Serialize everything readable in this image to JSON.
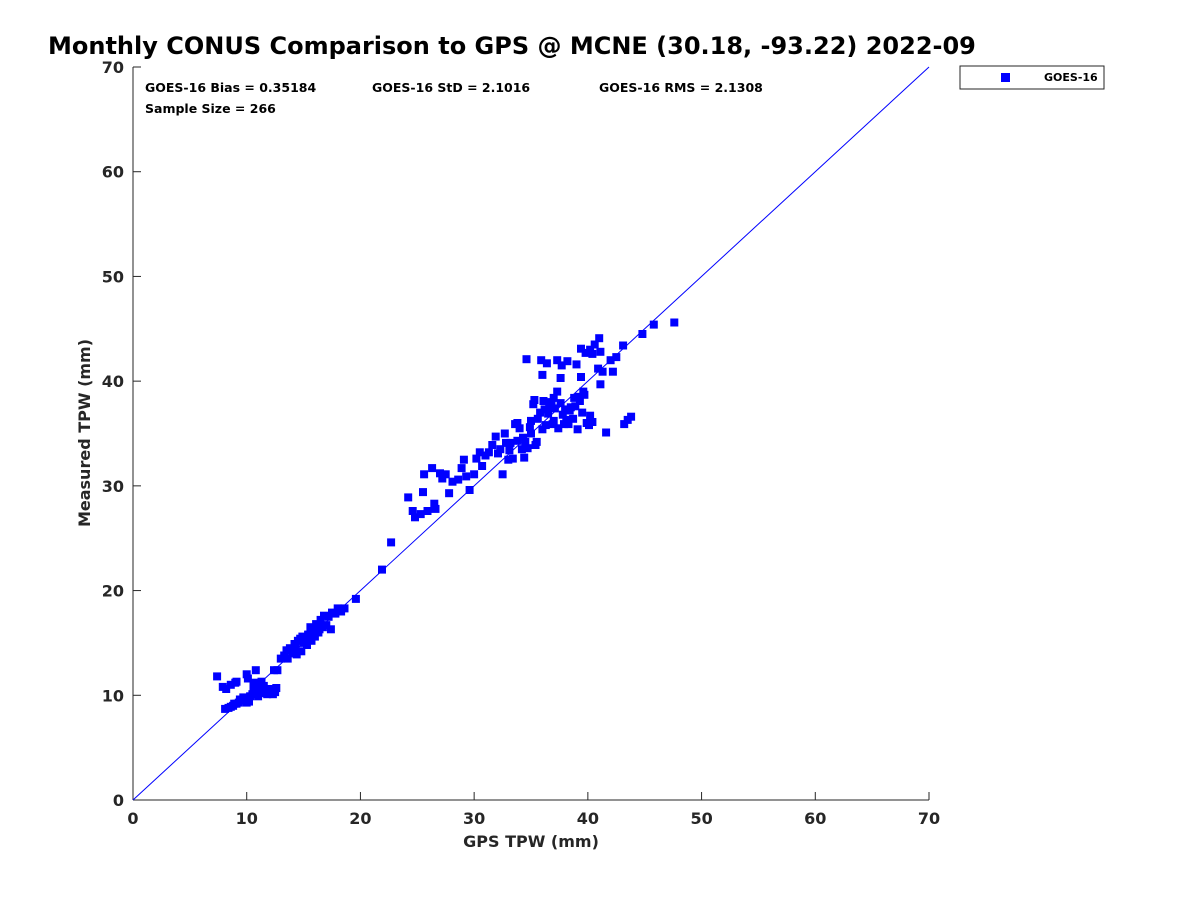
{
  "chart_data": {
    "type": "scatter",
    "title": "Monthly CONUS Comparison to GPS @ MCNE (30.18, -93.22) 2022-09",
    "xlabel": "GPS TPW (mm)",
    "ylabel": "Measured TPW (mm)",
    "xlim": [
      0,
      70
    ],
    "ylim": [
      0,
      70
    ],
    "xticks": [
      "0",
      "10",
      "20",
      "30",
      "40",
      "50",
      "60",
      "70"
    ],
    "yticks": [
      "0",
      "10",
      "20",
      "30",
      "40",
      "50",
      "60",
      "70"
    ],
    "grid": false,
    "legend_position": "outside-top-right",
    "reference_line": [
      [
        0,
        0
      ],
      [
        70,
        70
      ]
    ],
    "stats": {
      "bias": "GOES-16 Bias = 0.35184",
      "std": "GOES-16 StD = 2.1016",
      "rms": "GOES-16 RMS = 2.1308",
      "sample_size": "Sample Size = 266"
    },
    "series": [
      {
        "name": "GOES-16",
        "color": "#0000ff",
        "marker": "square",
        "points": [
          [
            7.4,
            11.8
          ],
          [
            7.9,
            10.8
          ],
          [
            8.2,
            10.6
          ],
          [
            8.6,
            11.0
          ],
          [
            9.0,
            11.2
          ],
          [
            9.1,
            11.3
          ],
          [
            10.0,
            12.0
          ],
          [
            10.1,
            11.6
          ],
          [
            10.6,
            11.2
          ],
          [
            10.8,
            12.4
          ],
          [
            11.0,
            10.8
          ],
          [
            11.3,
            11.3
          ],
          [
            11.5,
            10.9
          ],
          [
            11.7,
            10.4
          ],
          [
            12.2,
            10.6
          ],
          [
            12.5,
            10.3
          ],
          [
            12.6,
            10.7
          ],
          [
            8.1,
            8.7
          ],
          [
            8.4,
            8.8
          ],
          [
            8.6,
            8.9
          ],
          [
            8.8,
            9.0
          ],
          [
            8.9,
            9.2
          ],
          [
            9.1,
            9.2
          ],
          [
            9.3,
            9.3
          ],
          [
            9.4,
            9.6
          ],
          [
            9.6,
            9.5
          ],
          [
            9.7,
            9.8
          ],
          [
            9.9,
            9.7
          ],
          [
            10.0,
            9.3
          ],
          [
            10.2,
            9.4
          ],
          [
            10.3,
            9.9
          ],
          [
            10.5,
            10.1
          ],
          [
            10.6,
            10.5
          ],
          [
            10.8,
            10.3
          ],
          [
            11.0,
            9.9
          ],
          [
            11.2,
            10.4
          ],
          [
            11.4,
            10.2
          ],
          [
            11.6,
            10.6
          ],
          [
            11.8,
            10.1
          ],
          [
            12.0,
            10.4
          ],
          [
            12.3,
            10.1
          ],
          [
            12.5,
            10.6
          ],
          [
            12.4,
            12.4
          ],
          [
            12.7,
            12.4
          ],
          [
            13.0,
            13.5
          ],
          [
            13.3,
            13.8
          ],
          [
            13.5,
            14.3
          ],
          [
            13.6,
            13.5
          ],
          [
            13.8,
            14.5
          ],
          [
            14.0,
            14.0
          ],
          [
            14.2,
            14.9
          ],
          [
            14.3,
            14.6
          ],
          [
            14.5,
            15.2
          ],
          [
            14.4,
            13.9
          ],
          [
            14.7,
            15.4
          ],
          [
            14.8,
            14.2
          ],
          [
            15.0,
            15.0
          ],
          [
            15.1,
            15.5
          ],
          [
            15.3,
            14.8
          ],
          [
            15.4,
            15.8
          ],
          [
            15.6,
            16.5
          ],
          [
            15.7,
            15.2
          ],
          [
            15.9,
            16.2
          ],
          [
            16.0,
            15.6
          ],
          [
            16.1,
            16.8
          ],
          [
            16.3,
            16.0
          ],
          [
            16.5,
            17.2
          ],
          [
            16.7,
            16.5
          ],
          [
            16.8,
            17.6
          ],
          [
            17.0,
            16.7
          ],
          [
            17.2,
            17.5
          ],
          [
            17.4,
            16.3
          ],
          [
            17.5,
            17.9
          ],
          [
            17.8,
            17.8
          ],
          [
            18.0,
            18.3
          ],
          [
            18.3,
            18.0
          ],
          [
            18.6,
            18.3
          ],
          [
            19.6,
            19.2
          ],
          [
            15.5,
            15.8
          ],
          [
            14.9,
            15.6
          ],
          [
            16.4,
            16.3
          ],
          [
            21.9,
            22.0
          ],
          [
            22.7,
            24.6
          ],
          [
            24.2,
            28.9
          ],
          [
            24.6,
            27.6
          ],
          [
            24.8,
            27.0
          ],
          [
            25.3,
            27.3
          ],
          [
            25.5,
            29.4
          ],
          [
            25.6,
            31.1
          ],
          [
            25.9,
            27.6
          ],
          [
            26.3,
            31.7
          ],
          [
            26.5,
            28.3
          ],
          [
            26.6,
            27.8
          ],
          [
            27.0,
            31.2
          ],
          [
            27.2,
            30.7
          ],
          [
            27.5,
            31.1
          ],
          [
            27.8,
            29.3
          ],
          [
            28.1,
            30.4
          ],
          [
            28.6,
            30.6
          ],
          [
            28.9,
            31.7
          ],
          [
            29.1,
            32.5
          ],
          [
            29.3,
            30.9
          ],
          [
            29.6,
            29.6
          ],
          [
            30.0,
            31.1
          ],
          [
            30.2,
            32.6
          ],
          [
            30.5,
            33.2
          ],
          [
            30.7,
            31.9
          ],
          [
            31.0,
            32.9
          ],
          [
            31.3,
            33.2
          ],
          [
            31.6,
            33.9
          ],
          [
            31.9,
            34.7
          ],
          [
            32.1,
            33.1
          ],
          [
            32.3,
            33.5
          ],
          [
            32.5,
            31.1
          ],
          [
            32.7,
            35.0
          ],
          [
            33.0,
            32.5
          ],
          [
            33.2,
            34.1
          ],
          [
            33.4,
            32.6
          ],
          [
            33.6,
            35.9
          ],
          [
            33.8,
            34.3
          ],
          [
            34.0,
            35.5
          ],
          [
            34.2,
            33.5
          ],
          [
            34.4,
            32.7
          ],
          [
            34.5,
            34.2
          ],
          [
            34.7,
            33.6
          ],
          [
            35.0,
            35.0
          ],
          [
            35.2,
            37.8
          ],
          [
            35.3,
            38.2
          ],
          [
            35.5,
            34.2
          ],
          [
            35.6,
            36.4
          ],
          [
            35.8,
            37.0
          ],
          [
            36.0,
            35.4
          ],
          [
            36.1,
            38.1
          ],
          [
            36.3,
            35.8
          ],
          [
            36.5,
            36.9
          ],
          [
            36.6,
            37.6
          ],
          [
            36.8,
            38.0
          ],
          [
            37.0,
            36.2
          ],
          [
            37.1,
            37.4
          ],
          [
            37.3,
            39.0
          ],
          [
            37.4,
            35.5
          ],
          [
            37.6,
            37.9
          ],
          [
            37.8,
            36.8
          ],
          [
            38.0,
            37.3
          ],
          [
            38.1,
            36.3
          ],
          [
            38.3,
            35.9
          ],
          [
            38.5,
            37.5
          ],
          [
            38.7,
            36.4
          ],
          [
            38.9,
            37.6
          ],
          [
            39.1,
            35.4
          ],
          [
            39.3,
            38.1
          ],
          [
            39.5,
            37.0
          ],
          [
            39.7,
            38.7
          ],
          [
            39.9,
            36.0
          ],
          [
            40.1,
            35.8
          ],
          [
            40.2,
            36.7
          ],
          [
            34.6,
            42.1
          ],
          [
            35.9,
            42.0
          ],
          [
            36.4,
            41.7
          ],
          [
            37.3,
            42.0
          ],
          [
            37.7,
            41.5
          ],
          [
            38.2,
            41.9
          ],
          [
            39.0,
            41.6
          ],
          [
            39.4,
            43.1
          ],
          [
            39.8,
            42.7
          ],
          [
            40.2,
            43.0
          ],
          [
            40.6,
            43.5
          ],
          [
            41.0,
            44.1
          ],
          [
            40.9,
            41.2
          ],
          [
            41.1,
            42.8
          ],
          [
            40.4,
            42.6
          ],
          [
            36.0,
            40.6
          ],
          [
            37.6,
            40.3
          ],
          [
            39.4,
            40.4
          ],
          [
            41.1,
            39.7
          ],
          [
            41.3,
            40.9
          ],
          [
            42.2,
            40.9
          ],
          [
            42.0,
            42.0
          ],
          [
            42.5,
            42.3
          ],
          [
            43.1,
            43.4
          ],
          [
            43.2,
            35.9
          ],
          [
            43.5,
            36.3
          ],
          [
            43.8,
            36.6
          ],
          [
            41.6,
            35.1
          ],
          [
            44.8,
            44.5
          ],
          [
            45.8,
            45.4
          ],
          [
            47.6,
            45.6
          ],
          [
            33.8,
            36.0
          ],
          [
            34.3,
            34.6
          ],
          [
            35.0,
            36.2
          ],
          [
            36.9,
            35.9
          ],
          [
            38.4,
            37.2
          ],
          [
            39.6,
            39.0
          ],
          [
            37.0,
            38.4
          ],
          [
            36.2,
            37.3
          ],
          [
            38.8,
            38.4
          ],
          [
            39.2,
            38.5
          ],
          [
            40.4,
            36.1
          ],
          [
            37.9,
            35.9
          ],
          [
            35.4,
            33.9
          ],
          [
            33.1,
            33.4
          ],
          [
            32.8,
            34.1
          ],
          [
            34.9,
            35.6
          ]
        ]
      }
    ]
  }
}
